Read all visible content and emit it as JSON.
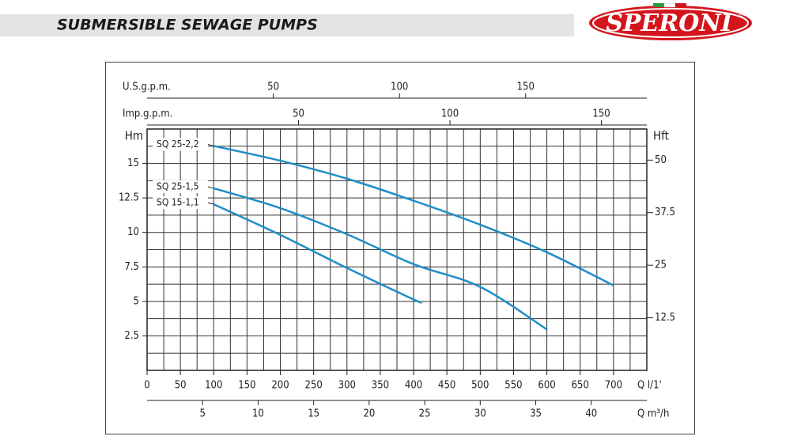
{
  "header": {
    "title": "SUBMERSIBLE SEWAGE PUMPS",
    "logo": "SPERONI",
    "logo_mark": "®"
  },
  "chart_data": {
    "type": "line",
    "xlabel": "Q l/1'",
    "xlim": [
      0,
      750
    ],
    "xticks": [
      0,
      50,
      100,
      150,
      200,
      250,
      300,
      350,
      400,
      450,
      500,
      550,
      600,
      650,
      700
    ],
    "ylabel": "Hm",
    "ylim": [
      0,
      17.5
    ],
    "yticks": [
      2.5,
      5,
      7.5,
      10,
      12.5,
      15
    ],
    "y2label": "Hft",
    "y2lim": [
      0,
      57.4
    ],
    "y2ticks": [
      12.5,
      25,
      37.5,
      50
    ],
    "extra_x_axes": [
      {
        "label": "U.S.g.p.m.",
        "position": "top",
        "xlim": [
          0,
          198
        ],
        "xticks": [
          50,
          100,
          150
        ]
      },
      {
        "label": "Imp.g.p.m.",
        "position": "top",
        "xlim": [
          0,
          165
        ],
        "xticks": [
          50,
          100,
          150
        ]
      },
      {
        "label": "Q m³/h",
        "position": "bottom",
        "xlim": [
          0,
          45
        ],
        "xticks": [
          5,
          10,
          15,
          20,
          25,
          30,
          35,
          40
        ]
      }
    ],
    "grid": true,
    "series": [
      {
        "name": "SQ 25-2,2",
        "color": "#1f8dc8",
        "x": [
          100,
          200,
          300,
          400,
          500,
          600,
          700
        ],
        "values": [
          16.27,
          15.2,
          13.9,
          12.3,
          10.56,
          8.56,
          6.16
        ]
      },
      {
        "name": "SQ 25-1,5",
        "color": "#1f8dc8",
        "x": [
          100,
          200,
          300,
          400,
          500,
          600
        ],
        "values": [
          13.2,
          11.76,
          9.87,
          7.7,
          6.05,
          2.97
        ]
      },
      {
        "name": "SQ 15-1,1",
        "color": "#1f8dc8",
        "x": [
          100,
          200,
          300,
          400,
          410
        ],
        "values": [
          12.04,
          9.82,
          7.42,
          5.14,
          4.97
        ]
      }
    ]
  }
}
